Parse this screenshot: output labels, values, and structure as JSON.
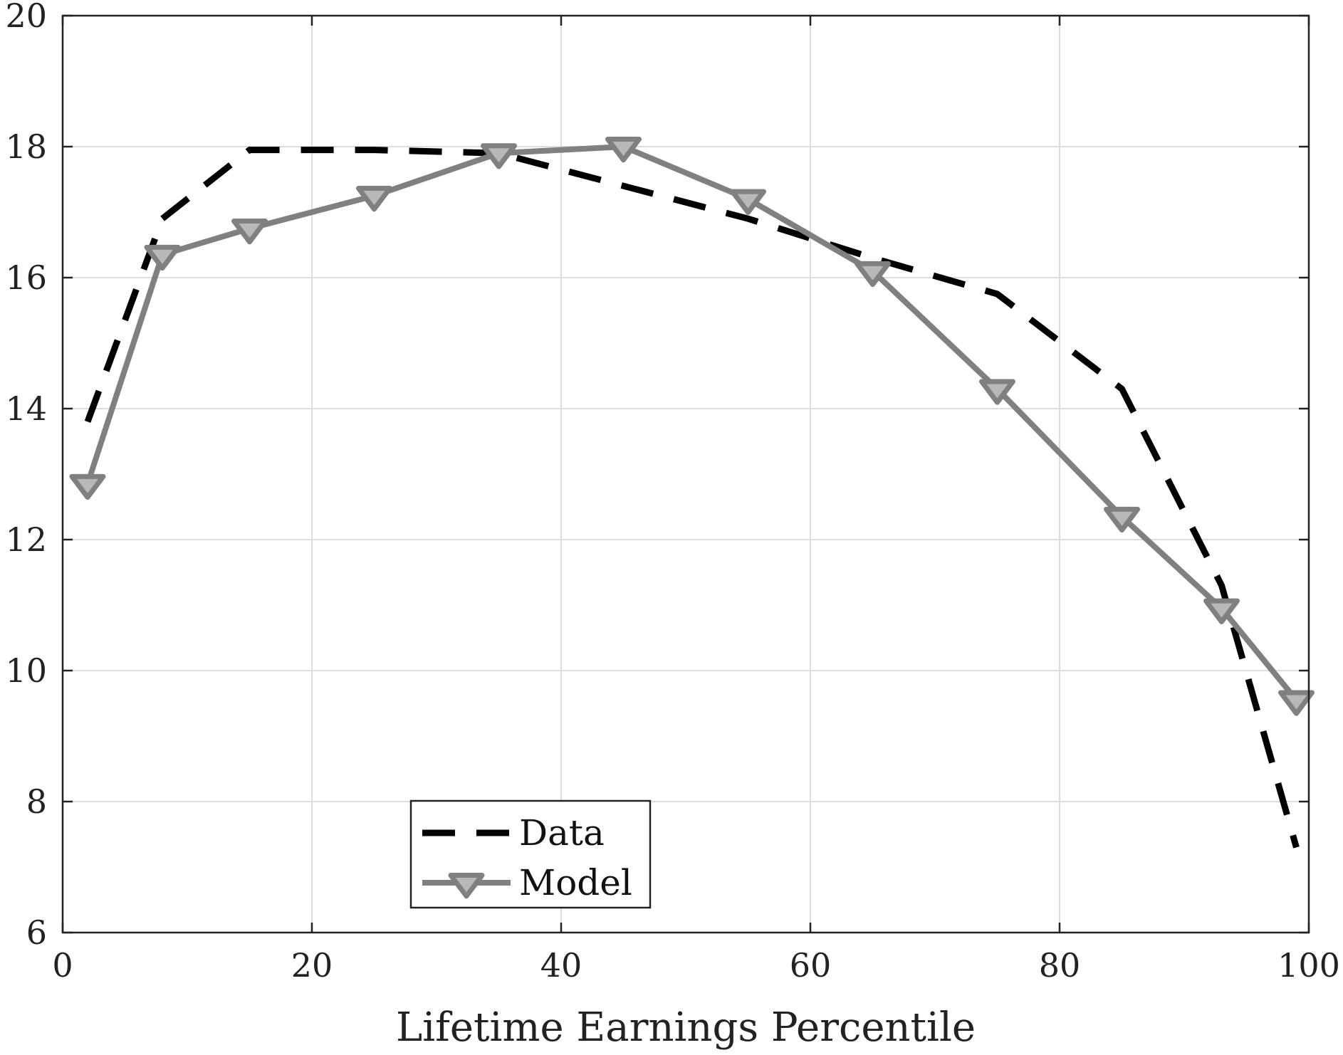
{
  "chart_data": {
    "type": "line",
    "title": "",
    "xlabel": "Lifetime Earnings Percentile",
    "ylabel": "",
    "xlim": [
      0,
      100
    ],
    "ylim": [
      6,
      20
    ],
    "xticks": [
      0,
      20,
      40,
      60,
      80,
      100
    ],
    "yticks": [
      6,
      8,
      10,
      12,
      14,
      16,
      18,
      20
    ],
    "x_tick_labels": [
      "0",
      "20",
      "40",
      "60",
      "80",
      "100"
    ],
    "y_tick_labels": [
      "6",
      "8",
      "10",
      "12",
      "14",
      "16",
      "18",
      "20"
    ],
    "grid": true,
    "legend_position": "bottom-center-left",
    "series": [
      {
        "name": "Data",
        "style": "dashed",
        "color": "#000000",
        "marker": "none",
        "x": [
          2,
          8,
          15,
          25,
          35,
          45,
          55,
          65,
          75,
          85,
          93,
          99
        ],
        "y": [
          13.8,
          16.9,
          17.95,
          17.95,
          17.9,
          17.4,
          16.9,
          16.3,
          15.75,
          14.3,
          11.3,
          7.3
        ]
      },
      {
        "name": "Model",
        "style": "solid",
        "color": "#808080",
        "marker": "triangle-down",
        "marker_fill": "#b8b8b8",
        "x": [
          2,
          8,
          15,
          25,
          35,
          45,
          55,
          65,
          75,
          85,
          93,
          99
        ],
        "y": [
          12.85,
          16.35,
          16.75,
          17.25,
          17.9,
          18.0,
          17.2,
          16.1,
          14.3,
          12.35,
          10.95,
          9.55
        ]
      }
    ]
  }
}
